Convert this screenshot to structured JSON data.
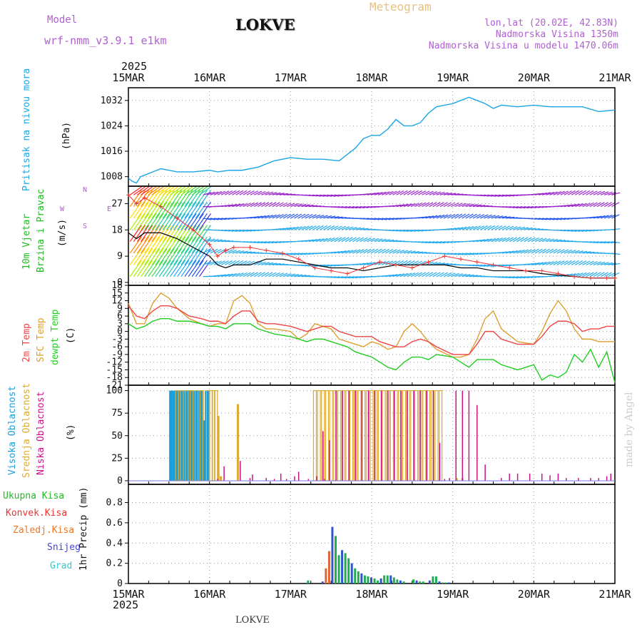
{
  "header": {
    "model_label": "Model",
    "model_name": "wrf-nmm_v3.9.1 e1km",
    "station": "LOKVE",
    "meteogram_title": "Meteogram",
    "coords": "lon,lat (20.02E, 42.83N)",
    "altitude": "Nadmorska Visina 1350m",
    "model_altitude": "Nadmorska Visina u modelu 1470.06m",
    "year_top": "2025",
    "year_bottom": "2025",
    "footer_station": "LOKVE",
    "credit": "made by Angel"
  },
  "colors": {
    "pressure": "#1aa5e6",
    "wind_label": "#22bb22",
    "temp2m": "#ee4444",
    "sfc": "#dda030",
    "dewpt": "#22cc22",
    "high": "#1a9fdd",
    "mid": "#ddaa33",
    "low": "#cc1188",
    "grid": "#999999",
    "axis": "#000000",
    "wind_speed": "#000000",
    "gust": "#ee3333"
  },
  "chart_data": [
    {
      "id": "pressure",
      "type": "line",
      "ylabel": "Pritisak na nivou mora",
      "unit": "(hPa)",
      "ylim": [
        1005,
        1036
      ],
      "yticks": [
        1008,
        1016,
        1024,
        1032
      ],
      "x_days": [
        "15MAR",
        "16MAR",
        "17MAR",
        "18MAR",
        "19MAR",
        "20MAR",
        "21MAR"
      ],
      "series": [
        {
          "x": [
            0,
            0.05,
            0.1,
            0.15,
            0.2,
            0.3,
            0.4,
            0.5,
            0.6,
            0.8,
            1.0,
            1.1,
            1.25,
            1.4,
            1.6,
            1.8,
            2.0,
            2.2,
            2.4,
            2.6,
            2.7,
            2.8,
            2.9,
            3.0,
            3.1,
            3.2,
            3.3,
            3.4,
            3.5,
            3.6,
            3.7,
            3.8,
            3.9,
            4.0,
            4.1,
            4.2,
            4.3,
            4.4,
            4.5,
            4.6,
            4.8,
            5.0,
            5.2,
            5.4,
            5.6,
            5.8,
            6.0
          ],
          "y": [
            1007.5,
            1006.5,
            1006,
            1008,
            1008.5,
            1009.5,
            1010.5,
            1010,
            1009.5,
            1009.5,
            1010,
            1009.5,
            1010,
            1010,
            1011,
            1013,
            1014,
            1013.5,
            1013.5,
            1013,
            1015,
            1017,
            1020,
            1021,
            1021,
            1023,
            1026,
            1024,
            1024,
            1025,
            1028,
            1030,
            1030.5,
            1031,
            1032,
            1033,
            1032,
            1031,
            1029.5,
            1030.5,
            1030,
            1030.5,
            1030,
            1030,
            1030,
            1028.5,
            1029
          ]
        }
      ]
    },
    {
      "id": "wind",
      "type": "line",
      "ylabel": "10m Vjetar",
      "ylabel2": "Brzina i Pravac",
      "unit": "(m/s)",
      "compass": {
        "n": "N",
        "s": "S",
        "w": "W",
        "e": "E"
      },
      "ylim": [
        -1,
        33
      ],
      "yticks": [
        0,
        9,
        18,
        27
      ],
      "series": [
        {
          "name": "speed",
          "x": [
            0,
            0.1,
            0.2,
            0.4,
            0.6,
            0.8,
            1.0,
            1.1,
            1.2,
            1.3,
            1.5,
            1.7,
            1.9,
            2.1,
            2.3,
            2.5,
            2.7,
            2.9,
            3.1,
            3.3,
            3.5,
            3.7,
            3.9,
            4.1,
            4.3,
            4.5,
            4.7,
            4.9,
            5.1,
            5.3,
            5.5,
            5.7,
            5.9,
            6.0
          ],
          "y": [
            17,
            15,
            17,
            17,
            15,
            12,
            9,
            6,
            5,
            6,
            6,
            8,
            8,
            7,
            6,
            5,
            5,
            4,
            5,
            6,
            6,
            6,
            6,
            5,
            5,
            4,
            4,
            4,
            3,
            2.5,
            2,
            1.5,
            1.5,
            1.5
          ]
        },
        {
          "name": "gust",
          "x": [
            0,
            0.1,
            0.2,
            0.4,
            0.6,
            0.8,
            1.0,
            1.1,
            1.2,
            1.3,
            1.5,
            1.7,
            1.9,
            2.1,
            2.3,
            2.5,
            2.7,
            2.9,
            3.1,
            3.3,
            3.5,
            3.7,
            3.9,
            4.1,
            4.3,
            4.5,
            4.7,
            4.9,
            5.1,
            5.3,
            5.5,
            5.7,
            5.9,
            6.0
          ],
          "y": [
            30,
            27,
            29,
            26,
            22,
            18,
            13,
            9,
            11,
            12,
            12,
            11,
            10,
            8,
            5,
            4,
            3,
            5,
            7,
            6,
            5,
            7,
            9,
            8,
            7,
            6,
            5,
            4,
            4,
            3,
            2,
            1.5,
            1.5,
            1.5
          ]
        }
      ]
    },
    {
      "id": "temperature",
      "type": "line",
      "ylabel": "2m Temp",
      "ylabel2": "SFC Temp",
      "ylabel3": "dewpt Temp",
      "unit": "(C)",
      "ylim": [
        -21,
        18
      ],
      "yticks": [
        18,
        15,
        12,
        9,
        6,
        3,
        0,
        -3,
        -6,
        -9,
        -12,
        -15,
        -18,
        -21
      ],
      "series": [
        {
          "name": "2m",
          "x": [
            0,
            0.1,
            0.2,
            0.3,
            0.4,
            0.5,
            0.6,
            0.75,
            0.9,
            1.0,
            1.1,
            1.2,
            1.3,
            1.4,
            1.5,
            1.6,
            1.7,
            1.8,
            2.0,
            2.1,
            2.2,
            2.3,
            2.4,
            2.5,
            2.6,
            2.7,
            2.8,
            2.9,
            3.0,
            3.1,
            3.2,
            3.3,
            3.4,
            3.5,
            3.6,
            3.7,
            3.8,
            4.0,
            4.1,
            4.2,
            4.3,
            4.4,
            4.5,
            4.6,
            4.8,
            5.0,
            5.1,
            5.2,
            5.3,
            5.4,
            5.5,
            5.6,
            5.7,
            5.8,
            5.9,
            6.0
          ],
          "y": [
            10,
            6,
            5,
            8,
            10,
            10,
            9,
            6,
            5,
            4,
            4,
            3,
            6,
            8,
            8,
            4,
            3,
            3,
            2,
            1,
            0,
            1,
            2,
            2,
            0,
            -1,
            -2,
            -2,
            -2,
            -4,
            -5,
            -6,
            -6,
            -4,
            -3,
            -4,
            -6,
            -9,
            -9,
            -9,
            -5,
            0,
            0,
            -3,
            -5,
            -5,
            -2,
            2,
            4,
            4,
            3,
            0,
            1,
            1,
            2,
            2
          ]
        },
        {
          "name": "sfc",
          "x": [
            0,
            0.1,
            0.2,
            0.3,
            0.4,
            0.5,
            0.6,
            0.75,
            0.9,
            1.0,
            1.1,
            1.2,
            1.3,
            1.4,
            1.5,
            1.6,
            1.7,
            1.8,
            2.0,
            2.1,
            2.2,
            2.3,
            2.4,
            2.5,
            2.6,
            2.7,
            2.8,
            2.9,
            3.0,
            3.1,
            3.2,
            3.3,
            3.4,
            3.5,
            3.6,
            3.7,
            3.8,
            4.0,
            4.1,
            4.2,
            4.3,
            4.4,
            4.5,
            4.6,
            4.8,
            5.0,
            5.1,
            5.2,
            5.3,
            5.4,
            5.5,
            5.6,
            5.7,
            5.8,
            5.9,
            6.0
          ],
          "y": [
            11,
            3,
            3,
            11,
            15,
            13,
            9,
            5,
            3,
            2,
            3,
            3,
            12,
            14,
            11,
            3,
            1,
            1,
            0,
            -3,
            -1,
            3,
            2,
            1,
            -3,
            -4,
            -5,
            -6,
            -4,
            -5,
            -7,
            -6,
            0,
            3,
            0,
            -4,
            -7,
            -10,
            -10,
            -9,
            -3,
            5,
            8,
            1,
            -4,
            -5,
            0,
            7,
            12,
            8,
            1,
            -3,
            -3,
            -4,
            -4,
            -4
          ]
        },
        {
          "name": "dewpt",
          "x": [
            0,
            0.1,
            0.2,
            0.3,
            0.4,
            0.5,
            0.6,
            0.75,
            0.9,
            1.0,
            1.1,
            1.2,
            1.3,
            1.4,
            1.5,
            1.6,
            1.7,
            1.8,
            2.0,
            2.1,
            2.2,
            2.3,
            2.4,
            2.5,
            2.6,
            2.7,
            2.8,
            2.9,
            3.0,
            3.1,
            3.2,
            3.3,
            3.4,
            3.5,
            3.6,
            3.7,
            3.8,
            4.0,
            4.1,
            4.2,
            4.3,
            4.4,
            4.5,
            4.6,
            4.8,
            5.0,
            5.1,
            5.2,
            5.3,
            5.4,
            5.5,
            5.6,
            5.7,
            5.8,
            5.9,
            6.0
          ],
          "y": [
            3,
            1,
            2,
            4,
            5,
            5,
            4,
            4,
            3,
            2,
            2,
            1,
            3,
            3,
            3,
            1,
            0,
            -1,
            -2,
            -3,
            -4,
            -3,
            -3,
            -4,
            -5,
            -6,
            -8,
            -9,
            -10,
            -12,
            -14,
            -15,
            -12,
            -10,
            -10,
            -11,
            -9,
            -10,
            -12,
            -14,
            -11,
            -11,
            -11,
            -13,
            -15,
            -13,
            -19,
            -17,
            -18,
            -16,
            -9,
            -12,
            -7,
            -14,
            -8,
            -20
          ]
        }
      ]
    },
    {
      "id": "clouds",
      "type": "bar",
      "ylabel": "Visoka Oblacnost",
      "ylabel2": "Srednja Oblacnost",
      "ylabel3": "Niska Oblacnost",
      "unit": "(%)",
      "ylim": [
        -4,
        106
      ],
      "yticks": [
        0,
        25,
        50,
        75,
        100
      ],
      "series": [
        {
          "name": "high",
          "x": [
            0.52,
            0.55,
            0.58,
            0.61,
            0.64,
            0.67,
            0.7,
            0.73,
            0.76,
            0.79,
            0.82,
            0.85,
            0.88,
            0.91,
            0.94,
            0.96,
            0.99
          ],
          "y": [
            100,
            100,
            100,
            100,
            100,
            100,
            100,
            100,
            100,
            100,
            100,
            100,
            100,
            100,
            67,
            100,
            100
          ]
        },
        {
          "name": "mid",
          "x": [
            0.6,
            0.66,
            0.72,
            0.78,
            0.84,
            0.9,
            0.98,
            1.02,
            1.05,
            1.08,
            1.11,
            1.14,
            1.35,
            2.3,
            2.35,
            2.4,
            2.45,
            2.5,
            2.55,
            2.6,
            2.65,
            2.7,
            2.75,
            2.8,
            2.85,
            2.9,
            2.95,
            3.0,
            3.05,
            3.1,
            3.15,
            3.2,
            3.25,
            3.3,
            3.35,
            3.4,
            3.45,
            3.5,
            3.55,
            3.6,
            3.65,
            3.7,
            3.75,
            3.8,
            3.85,
            4.05,
            4.12
          ],
          "y": [
            100,
            100,
            100,
            100,
            100,
            100,
            100,
            100,
            100,
            100,
            72,
            5,
            85,
            100,
            100,
            100,
            100,
            100,
            100,
            100,
            100,
            100,
            100,
            100,
            100,
            100,
            100,
            100,
            100,
            100,
            100,
            100,
            100,
            100,
            100,
            100,
            100,
            100,
            100,
            100,
            100,
            100,
            100,
            100,
            100,
            3,
            3
          ]
        },
        {
          "name": "low",
          "x": [
            1.1,
            1.18,
            1.38,
            1.5,
            1.53,
            1.7,
            1.8,
            1.88,
            1.95,
            2.05,
            2.1,
            2.22,
            2.32,
            2.4,
            2.42,
            2.48,
            2.56,
            2.64,
            2.72,
            2.8,
            2.88,
            2.96,
            3.04,
            3.12,
            3.2,
            3.28,
            3.36,
            3.44,
            3.52,
            3.6,
            3.68,
            3.76,
            3.84,
            3.9,
            3.96,
            4.04,
            4.12,
            4.2,
            4.3,
            4.4,
            4.6,
            4.7,
            4.8,
            4.95,
            5.1,
            5.2,
            5.3,
            5.4,
            5.55,
            5.7,
            5.8,
            5.9,
            5.95
          ],
          "y": [
            2,
            16,
            22,
            3,
            7,
            3,
            2,
            8,
            2,
            5,
            10,
            2,
            5,
            55,
            2,
            45,
            100,
            100,
            100,
            100,
            100,
            100,
            100,
            100,
            100,
            100,
            100,
            100,
            100,
            100,
            100,
            100,
            42,
            2,
            3,
            100,
            100,
            100,
            84,
            18,
            3,
            8,
            8,
            8,
            8,
            6,
            8,
            3,
            3,
            3,
            3,
            5,
            8
          ]
        }
      ]
    },
    {
      "id": "precip",
      "type": "bar",
      "legend": [
        "Ukupna Kisa",
        "Konvek.Kisa",
        "Zaledj.Kisa",
        "Snijeg",
        "Grad"
      ],
      "legend_colors": [
        "#22bb22",
        "#ee3333",
        "#ee7722",
        "#4444dd",
        "#33cccc"
      ],
      "ylabel": "1hr Precip (mm)",
      "ylim": [
        0,
        0.98
      ],
      "yticks": [
        0,
        0.2,
        0.4,
        0.6,
        0.8
      ],
      "series": [
        {
          "name": "total",
          "x": [
            2.22,
            2.4,
            2.44,
            2.48,
            2.52,
            2.56,
            2.6,
            2.64,
            2.68,
            2.72,
            2.76,
            2.8,
            2.84,
            2.88,
            2.92,
            2.96,
            3.0,
            3.04,
            3.08,
            3.12,
            3.16,
            3.2,
            3.24,
            3.28,
            3.32,
            3.36,
            3.4,
            3.52,
            3.56,
            3.6,
            3.64,
            3.72,
            3.76,
            3.8,
            3.84,
            3.88,
            3.92,
            3.96,
            4.0,
            4.04,
            4.1,
            4.16,
            4.22,
            4.28,
            4.36,
            4.44,
            4.52,
            4.6,
            4.68,
            4.76,
            4.84,
            4.92,
            5.0,
            5.1,
            5.2
          ],
          "y": [
            0.03,
            0.02,
            0.15,
            0.32,
            0.56,
            0.47,
            0.28,
            0.33,
            0.3,
            0.25,
            0.2,
            0.15,
            0.12,
            0.1,
            0.08,
            0.07,
            0.06,
            0.05,
            0.03,
            0.05,
            0.08,
            0.08,
            0.08,
            0.06,
            0.04,
            0.03,
            0.02,
            0.04,
            0.03,
            0.02,
            0.02,
            0.03,
            0.07,
            0.07,
            0.02,
            0.01,
            0.01,
            0.01,
            0.0,
            0.0,
            0.0,
            0.0,
            0.0,
            0.0,
            0.0,
            0.0,
            0.0,
            0.0,
            0.0,
            0.0,
            0.0,
            0.0,
            0.0,
            0.0,
            0.0
          ]
        }
      ]
    }
  ]
}
